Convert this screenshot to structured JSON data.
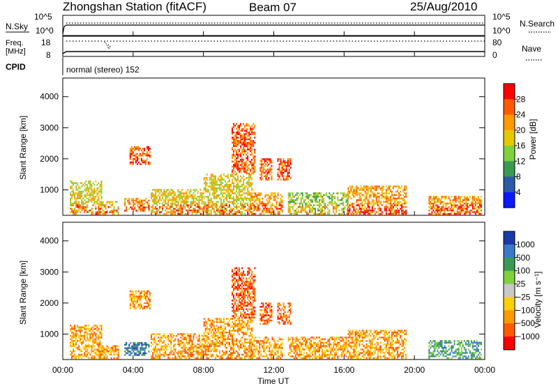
{
  "header": {
    "title": "Zhongshan Station (fitACF)",
    "beam": "Beam 07",
    "date": "25/Aug/2010"
  },
  "nsky_panel": {
    "left_label": "N.Sky",
    "right_label": "N.Search",
    "left_ticks": [
      "10^5",
      "10^0"
    ],
    "right_ticks": [
      "10^5",
      "10^0"
    ]
  },
  "freq_panel": {
    "left_label_line1": "Freq.",
    "left_label_line2": "[MHz]",
    "right_label": "Nave",
    "left_ticks": [
      "18",
      "8"
    ],
    "right_ticks": [
      "80",
      "0"
    ]
  },
  "cpid": {
    "label": "CPID",
    "value": "normal (stereo) 152"
  },
  "chart_data": [
    {
      "type": "heatmap",
      "name": "power",
      "ylabel": "Slant Range [km]",
      "yticks": [
        "4000",
        "3000",
        "2000",
        "1000"
      ],
      "ylim": [
        180,
        4600
      ],
      "xlim": [
        0,
        24
      ],
      "colorbar": {
        "label": "Power [dB]",
        "ticks": [
          "28",
          "24",
          "20",
          "16",
          "12",
          "8",
          "4"
        ],
        "colors": [
          "#ff0000",
          "#ff5a00",
          "#ff9900",
          "#e6c800",
          "#7fd23c",
          "#3a9a52",
          "#2a5aa8",
          "#0a1aff"
        ]
      },
      "regions": [
        {
          "t0": 0.4,
          "t1": 2.2,
          "r0": 200,
          "r1": 1300,
          "level": 3
        },
        {
          "t0": 2.0,
          "t1": 3.2,
          "r0": 200,
          "r1": 600,
          "level": 3
        },
        {
          "t0": 3.5,
          "t1": 4.9,
          "r0": 300,
          "r1": 700,
          "level": 2
        },
        {
          "t0": 3.8,
          "t1": 5.0,
          "r0": 1800,
          "r1": 2400,
          "level": 1
        },
        {
          "t0": 5.0,
          "t1": 8.0,
          "r0": 200,
          "r1": 1000,
          "level": 3
        },
        {
          "t0": 8.0,
          "t1": 10.8,
          "r0": 200,
          "r1": 1500,
          "level": 3
        },
        {
          "t0": 9.6,
          "t1": 10.9,
          "r0": 1500,
          "r1": 3100,
          "level": 1
        },
        {
          "t0": 11.2,
          "t1": 11.9,
          "r0": 1300,
          "r1": 2000,
          "level": 1
        },
        {
          "t0": 12.2,
          "t1": 13.0,
          "r0": 1300,
          "r1": 2000,
          "level": 1
        },
        {
          "t0": 10.6,
          "t1": 12.5,
          "r0": 200,
          "r1": 900,
          "level": 2
        },
        {
          "t0": 12.8,
          "t1": 16.2,
          "r0": 200,
          "r1": 900,
          "level": 4
        },
        {
          "t0": 16.2,
          "t1": 19.5,
          "r0": 200,
          "r1": 1100,
          "level": 2
        },
        {
          "t0": 20.8,
          "t1": 23.8,
          "r0": 200,
          "r1": 800,
          "level": 2
        }
      ]
    },
    {
      "type": "heatmap",
      "name": "velocity",
      "ylabel": "Slant Range [km]",
      "yticks": [
        "4000",
        "3000",
        "2000",
        "1000"
      ],
      "ylim": [
        180,
        4600
      ],
      "xlim": [
        0,
        24
      ],
      "xticks": [
        "00:00",
        "04:00",
        "08:00",
        "12:00",
        "16:00",
        "20:00",
        "00:00"
      ],
      "xlabel": "Time UT",
      "colorbar": {
        "label": "Velocity [m s⁻¹]",
        "ticks": [
          "1000",
          "500",
          "100",
          "25",
          "−25",
          "−100",
          "−500",
          "−1000"
        ],
        "colors": [
          "#1a3aa8",
          "#3a7ac8",
          "#3a9a52",
          "#7fd23c",
          "#c8c8c8",
          "#ffd000",
          "#ff9900",
          "#ff5a00",
          "#ff0000"
        ]
      },
      "regions": [
        {
          "t0": 0.4,
          "t1": 2.2,
          "r0": 200,
          "r1": 1300,
          "level": 6
        },
        {
          "t0": 2.0,
          "t1": 3.2,
          "r0": 200,
          "r1": 600,
          "level": 6
        },
        {
          "t0": 3.5,
          "t1": 4.9,
          "r0": 300,
          "r1": 700,
          "level": 1
        },
        {
          "t0": 3.8,
          "t1": 5.0,
          "r0": 1800,
          "r1": 2400,
          "level": 6
        },
        {
          "t0": 5.0,
          "t1": 8.0,
          "r0": 200,
          "r1": 1000,
          "level": 6
        },
        {
          "t0": 8.0,
          "t1": 10.8,
          "r0": 200,
          "r1": 1500,
          "level": 6
        },
        {
          "t0": 9.6,
          "t1": 10.9,
          "r0": 1500,
          "r1": 3100,
          "level": 7
        },
        {
          "t0": 11.2,
          "t1": 11.9,
          "r0": 1300,
          "r1": 2000,
          "level": 7
        },
        {
          "t0": 12.2,
          "t1": 13.0,
          "r0": 1300,
          "r1": 2000,
          "level": 7
        },
        {
          "t0": 10.6,
          "t1": 12.5,
          "r0": 200,
          "r1": 900,
          "level": 6
        },
        {
          "t0": 12.8,
          "t1": 16.2,
          "r0": 200,
          "r1": 900,
          "level": 6
        },
        {
          "t0": 16.2,
          "t1": 19.5,
          "r0": 200,
          "r1": 1100,
          "level": 6
        },
        {
          "t0": 20.8,
          "t1": 23.8,
          "r0": 200,
          "r1": 800,
          "level": 2
        }
      ]
    }
  ]
}
